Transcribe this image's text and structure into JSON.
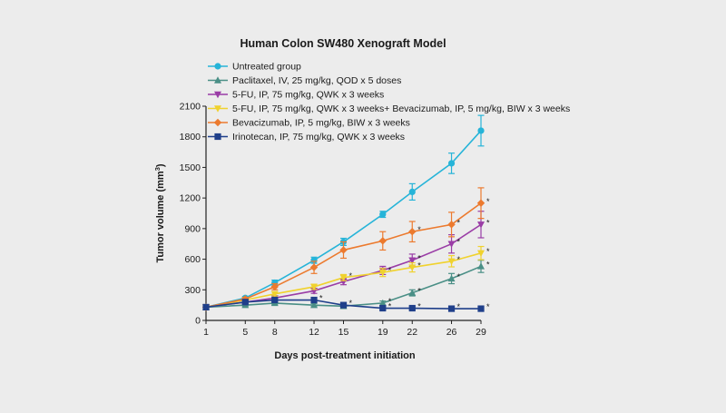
{
  "chart_data": {
    "type": "line",
    "title": "Human Colon SW480 Xenograft Model",
    "xlabel": "Days post-treatment initiation",
    "ylabel": "Tumor volume (mm",
    "ylabel_superscript": "3",
    "ylabel_close": ")",
    "x_ticks": [
      1,
      5,
      8,
      12,
      15,
      19,
      22,
      26,
      29
    ],
    "y_ticks": [
      0,
      300,
      600,
      900,
      1200,
      1500,
      1800,
      2100
    ],
    "xlim": [
      1,
      29
    ],
    "ylim": [
      0,
      2100
    ],
    "grid": false,
    "legend_position": "top-left",
    "significance_marker": "*",
    "series": [
      {
        "name": "Untreated group",
        "color": "#26b4d8",
        "marker": "circle",
        "x": [
          1,
          5,
          8,
          12,
          15,
          19,
          22,
          26,
          29
        ],
        "y": [
          130,
          220,
          370,
          590,
          770,
          1040,
          1260,
          1540,
          1860
        ],
        "err": [
          10,
          15,
          25,
          30,
          35,
          30,
          80,
          100,
          150
        ],
        "significant": [
          false,
          false,
          false,
          false,
          false,
          false,
          false,
          false,
          false
        ]
      },
      {
        "name": "Paclitaxel, IV, 25 mg/kg, QOD x 5 doses",
        "color": "#4a8f86",
        "marker": "triangle",
        "x": [
          1,
          5,
          8,
          12,
          15,
          19,
          22,
          26,
          29
        ],
        "y": [
          130,
          150,
          170,
          150,
          140,
          170,
          270,
          410,
          530
        ],
        "err": [
          10,
          10,
          15,
          15,
          15,
          20,
          30,
          50,
          60
        ],
        "significant": [
          false,
          false,
          false,
          false,
          false,
          true,
          true,
          true,
          true
        ]
      },
      {
        "name": "5-FU, IP, 75 mg/kg, QWK x 3 weeks",
        "color": "#9a3da6",
        "marker": "triangle-down",
        "x": [
          1,
          5,
          8,
          12,
          15,
          19,
          22,
          26,
          29
        ],
        "y": [
          130,
          180,
          220,
          290,
          380,
          490,
          590,
          750,
          940
        ],
        "err": [
          10,
          15,
          20,
          25,
          30,
          40,
          60,
          90,
          130
        ],
        "significant": [
          false,
          false,
          false,
          false,
          false,
          false,
          true,
          true,
          true
        ]
      },
      {
        "name": "5-FU, IP, 75 mg/kg, QWK x 3 weeks+ Bevacizumab, IP, 5 mg/kg, BIW x 3 weeks",
        "color": "#f0d22e",
        "marker": "triangle-down",
        "x": [
          1,
          5,
          8,
          12,
          15,
          19,
          22,
          26,
          29
        ],
        "y": [
          130,
          200,
          260,
          330,
          420,
          470,
          520,
          580,
          660
        ],
        "err": [
          10,
          15,
          20,
          25,
          30,
          40,
          45,
          55,
          65
        ],
        "significant": [
          false,
          false,
          false,
          false,
          true,
          true,
          true,
          true,
          true
        ]
      },
      {
        "name": "Bevacizumab, IP, 5 mg/kg, BIW x 3 weeks",
        "color": "#ec7a2e",
        "marker": "diamond",
        "x": [
          1,
          5,
          8,
          12,
          15,
          19,
          22,
          26,
          29
        ],
        "y": [
          130,
          210,
          330,
          520,
          690,
          780,
          870,
          940,
          1150
        ],
        "err": [
          10,
          15,
          30,
          60,
          80,
          90,
          100,
          120,
          150
        ],
        "significant": [
          false,
          false,
          false,
          false,
          false,
          false,
          true,
          true,
          true
        ]
      },
      {
        "name": "Irinotecan, IP, 75 mg/kg, QWK x 3 weeks",
        "color": "#1f3f8a",
        "marker": "square",
        "x": [
          1,
          5,
          8,
          12,
          15,
          19,
          22,
          26,
          29
        ],
        "y": [
          130,
          180,
          200,
          200,
          150,
          120,
          120,
          115,
          115
        ],
        "err": [
          10,
          15,
          20,
          20,
          15,
          15,
          15,
          15,
          15
        ],
        "significant": [
          false,
          false,
          false,
          true,
          true,
          true,
          true,
          true,
          true
        ]
      }
    ]
  }
}
